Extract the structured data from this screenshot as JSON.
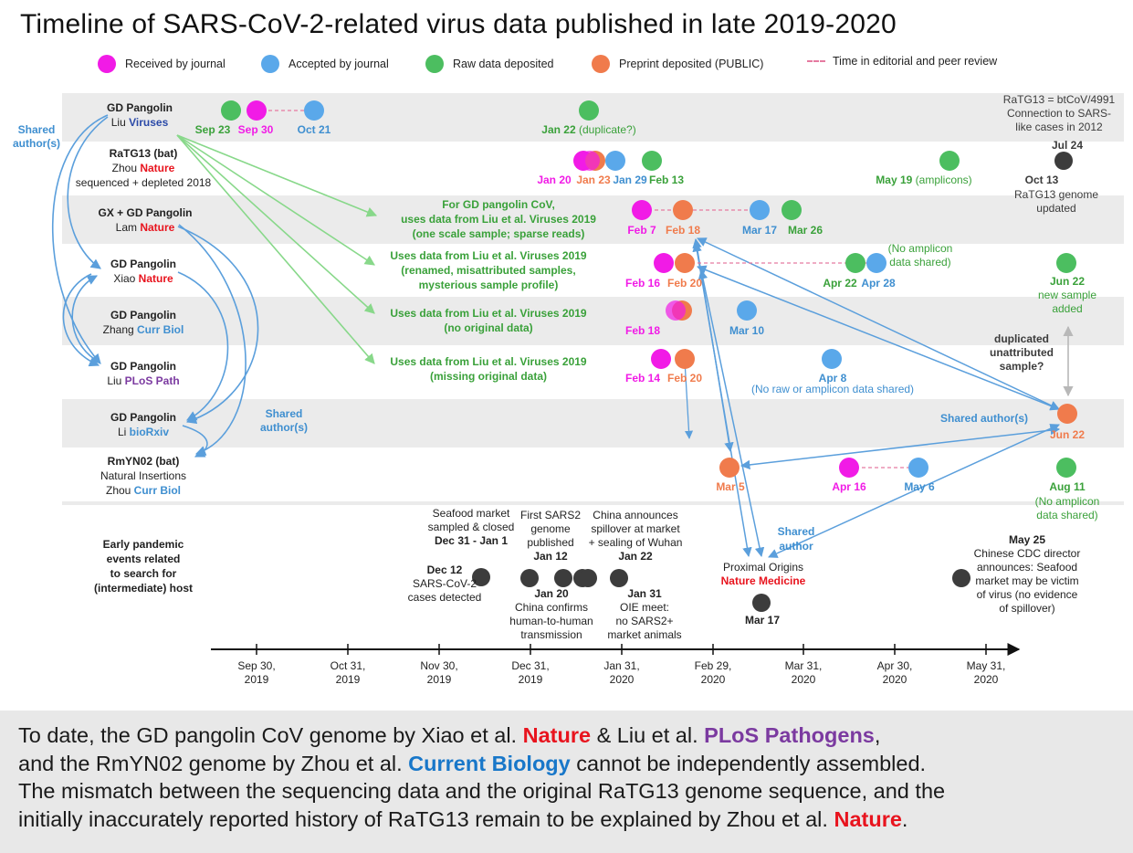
{
  "title": "Timeline of SARS-CoV-2-related virus data published in late 2019-2020",
  "colors": {
    "received": "#f11be6",
    "accepted": "#5aa8ea",
    "raw": "#4cbe60",
    "preprint": "#f07b4c",
    "event": "#3c3c3c",
    "green_text": "#3aa13a",
    "blue_text": "#3f8fd0",
    "red_text": "#e8141e",
    "navy_text": "#2b4aa8",
    "purple_text": "#7b3aa0",
    "arrow_blue": "#5b9fdc",
    "arrow_green": "#88d88a",
    "band": "#ebebeb"
  },
  "legend": [
    {
      "key": "received",
      "label": "Received by journal"
    },
    {
      "key": "accepted",
      "label": "Accepted by journal"
    },
    {
      "key": "raw",
      "label": "Raw data deposited"
    },
    {
      "key": "preprint",
      "label": "Preprint deposited (PUBLIC)"
    },
    {
      "key": "review",
      "label": "Time in editorial and peer review"
    }
  ],
  "row_labels": [
    {
      "id": "liu-viruses",
      "lines": [
        [
          {
            "t": "GD Pangolin",
            "b": true
          }
        ],
        [
          {
            "t": "Liu "
          },
          {
            "t": "Viruses",
            "c": "navy_text",
            "b": true
          }
        ]
      ]
    },
    {
      "id": "ratg13",
      "lines": [
        [
          {
            "t": "RaTG13 (bat)",
            "b": true
          }
        ],
        [
          {
            "t": "Zhou "
          },
          {
            "t": "Nature",
            "c": "red_text",
            "b": true
          }
        ],
        [
          {
            "t": "sequenced + depleted 2018"
          }
        ]
      ]
    },
    {
      "id": "lam",
      "lines": [
        [
          {
            "t": "GX + GD Pangolin",
            "b": true
          }
        ],
        [
          {
            "t": "Lam "
          },
          {
            "t": "Nature",
            "c": "red_text",
            "b": true
          }
        ]
      ]
    },
    {
      "id": "xiao",
      "lines": [
        [
          {
            "t": "GD Pangolin",
            "b": true
          }
        ],
        [
          {
            "t": "Xiao "
          },
          {
            "t": "Nature",
            "c": "red_text",
            "b": true
          }
        ]
      ]
    },
    {
      "id": "zhang",
      "lines": [
        [
          {
            "t": "GD Pangolin",
            "b": true
          }
        ],
        [
          {
            "t": "Zhang "
          },
          {
            "t": "Curr Biol",
            "c": "blue_text",
            "b": true
          }
        ]
      ]
    },
    {
      "id": "liu-plos",
      "lines": [
        [
          {
            "t": "GD Pangolin",
            "b": true
          }
        ],
        [
          {
            "t": "Liu "
          },
          {
            "t": "PLoS Path",
            "c": "purple_text",
            "b": true
          }
        ]
      ]
    },
    {
      "id": "li",
      "lines": [
        [
          {
            "t": "GD Pangolin",
            "b": true
          }
        ],
        [
          {
            "t": "Li "
          },
          {
            "t": "bioRxiv",
            "c": "blue_text",
            "b": true
          }
        ]
      ]
    },
    {
      "id": "rmyn02",
      "lines": [
        [
          {
            "t": "RmYN02 (bat)",
            "b": true
          }
        ],
        [
          {
            "t": "Natural Insertions"
          }
        ],
        [
          {
            "t": "Zhou "
          },
          {
            "t": "Curr Biol",
            "c": "blue_text",
            "b": true
          }
        ]
      ]
    },
    {
      "id": "early",
      "lines": [
        [
          {
            "t": "Early pandemic",
            "b": true
          }
        ],
        [
          {
            "t": "events related",
            "b": true
          }
        ],
        [
          {
            "t": "to search for",
            "b": true
          }
        ],
        [
          {
            "t": "(intermediate) host",
            "b": true
          }
        ]
      ]
    }
  ],
  "shared_authors": [
    {
      "id": "left",
      "lines": [
        "Shared",
        "author(s)"
      ]
    },
    {
      "id": "middle",
      "lines": [
        "Shared",
        "author(s)"
      ]
    },
    {
      "id": "right",
      "text": "Shared author(s)"
    },
    {
      "id": "nm",
      "lines": [
        "Shared",
        "author"
      ]
    }
  ],
  "dots": [
    {
      "id": "liu-sep23",
      "type": "raw",
      "date": "Sep 23",
      "label_c": "green_text"
    },
    {
      "id": "liu-sep30",
      "type": "received",
      "date": "Sep 30",
      "label_c": "received"
    },
    {
      "id": "liu-oct21",
      "type": "accepted",
      "date": "Oct 21",
      "label_c": "blue_text"
    },
    {
      "id": "liu-jan22",
      "type": "raw",
      "date": "Jan 22",
      "label_c": "green_text",
      "note": "(duplicate?)"
    },
    {
      "id": "rat-jan20",
      "type": "received",
      "date": "Jan 20",
      "label_c": "received"
    },
    {
      "id": "rat-jan23p",
      "type": "preprint"
    },
    {
      "id": "rat-jan23",
      "type": "received",
      "date": "Jan 23",
      "label_c": "preprint",
      "semi": true
    },
    {
      "id": "rat-jan29",
      "type": "accepted",
      "date": "Jan 29",
      "label_c": "blue_text"
    },
    {
      "id": "rat-feb13",
      "type": "raw",
      "date": "Feb 13",
      "label_c": "green_text"
    },
    {
      "id": "rat-may19",
      "type": "raw",
      "date": "May 19",
      "label_c": "green_text",
      "note": "(amplicons)"
    },
    {
      "id": "rat-oct13",
      "type": "event",
      "date": "Oct 13",
      "label_c": "event"
    },
    {
      "id": "lam-feb7",
      "type": "received",
      "date": "Feb 7",
      "label_c": "received"
    },
    {
      "id": "lam-feb18",
      "type": "preprint",
      "date": "Feb 18",
      "label_c": "preprint"
    },
    {
      "id": "lam-mar17",
      "type": "accepted",
      "date": "Mar 17",
      "label_c": "blue_text"
    },
    {
      "id": "lam-mar26",
      "type": "raw",
      "date": "Mar 26",
      "label_c": "green_text"
    },
    {
      "id": "xiao-feb16",
      "type": "received",
      "date": "Feb 16",
      "label_c": "received"
    },
    {
      "id": "xiao-feb20",
      "type": "preprint",
      "date": "Feb 20",
      "label_c": "preprint"
    },
    {
      "id": "xiao-apr22",
      "type": "raw",
      "date": "Apr 22",
      "label_c": "green_text"
    },
    {
      "id": "xiao-apr28",
      "type": "accepted",
      "date": "Apr 28",
      "label_c": "blue_text"
    },
    {
      "id": "xiao-jun22",
      "type": "raw",
      "date": "Jun 22",
      "label_c": "green_text"
    },
    {
      "id": "zhang-feb20p",
      "type": "preprint"
    },
    {
      "id": "zhang-feb18",
      "type": "received",
      "date": "Feb 18",
      "label_c": "received",
      "semi": true
    },
    {
      "id": "zhang-mar10",
      "type": "accepted",
      "date": "Mar 10",
      "label_c": "blue_text"
    },
    {
      "id": "plos-feb14",
      "type": "received",
      "date": "Feb 14",
      "label_c": "received"
    },
    {
      "id": "plos-feb20",
      "type": "preprint",
      "date": "Feb 20",
      "label_c": "preprint"
    },
    {
      "id": "plos-apr8",
      "type": "accepted",
      "date": "Apr 8",
      "label_c": "blue_text"
    },
    {
      "id": "li-jun22",
      "type": "preprint",
      "date": "Jun 22",
      "label_c": "preprint"
    },
    {
      "id": "rm-mar5",
      "type": "preprint",
      "date": "Mar 5",
      "label_c": "preprint"
    },
    {
      "id": "rm-apr16",
      "type": "received",
      "date": "Apr 16",
      "label_c": "received"
    },
    {
      "id": "rm-may6",
      "type": "accepted",
      "date": "May 6",
      "label_c": "blue_text"
    },
    {
      "id": "rm-aug11",
      "type": "raw",
      "date": "Aug 11",
      "label_c": "green_text"
    },
    {
      "id": "ev-dec12",
      "type": "event"
    },
    {
      "id": "ev-dec31",
      "type": "event"
    },
    {
      "id": "ev-jan12",
      "type": "event"
    },
    {
      "id": "ev-jan20",
      "type": "event"
    },
    {
      "id": "ev-jan22",
      "type": "event"
    },
    {
      "id": "ev-jan31",
      "type": "event"
    },
    {
      "id": "ev-mar17",
      "type": "event"
    },
    {
      "id": "ev-may25",
      "type": "event"
    }
  ],
  "review_lines": [
    "liu",
    "lam",
    "xiao",
    "rmyn"
  ],
  "green_arrows": [
    "lam",
    "xiao",
    "zhang",
    "liu-plos"
  ],
  "green_notes": [
    {
      "id": "lam",
      "lines": [
        "For GD pangolin CoV,",
        "uses data from Liu et al.  Viruses 2019",
        "(one scale sample; sparse reads)"
      ]
    },
    {
      "id": "xiao",
      "lines": [
        "Uses data from Liu et al.  Viruses 2019",
        "(renamed, misattributed samples,",
        "mysterious sample profile)"
      ]
    },
    {
      "id": "zhang",
      "lines": [
        "Uses data from Liu et al.  Viruses 2019",
        "(no original data)"
      ]
    },
    {
      "id": "liu-plos",
      "lines": [
        "Uses data from Liu et al.  Viruses 2019",
        "(missing original data)"
      ]
    }
  ],
  "annotations": [
    {
      "id": "ratg13-note",
      "c": "event",
      "lines": [
        "RaTG13 = btCoV/4991",
        "Connection to SARS-",
        "like cases in 2012"
      ]
    },
    {
      "id": "jul24",
      "c": "event",
      "b": true,
      "lines": [
        "Jul 24"
      ]
    },
    {
      "id": "ratg13-updated",
      "c": "event",
      "lines": [
        "RaTG13 genome",
        "updated"
      ]
    },
    {
      "id": "xiao-noamp",
      "c": "green_text",
      "lines": [
        "(No amplicon",
        "data shared)"
      ]
    },
    {
      "id": "xiao-newsample",
      "c": "green_text",
      "lines": [
        "new sample",
        "added"
      ]
    },
    {
      "id": "dup",
      "c": "event",
      "b": true,
      "lines": [
        "duplicated",
        "unattributed",
        "sample?"
      ]
    },
    {
      "id": "plos-noraw",
      "c": "blue_text",
      "lines": [
        "(No raw or amplicon data shared)"
      ]
    },
    {
      "id": "rm-noamp",
      "c": "green_text",
      "lines": [
        "(No amplicon",
        "data shared)"
      ]
    }
  ],
  "events": [
    {
      "id": "dec12",
      "bold": "Dec 12",
      "text": [
        "SARS-CoV-2",
        "cases detected"
      ]
    },
    {
      "id": "dec31",
      "text": [
        "Seafood market",
        "sampled & closed"
      ],
      "bold": "Dec 31 - Jan 1"
    },
    {
      "id": "jan12",
      "text": [
        "First SARS2",
        "genome",
        "published"
      ],
      "bold": "Jan 12"
    },
    {
      "id": "jan22",
      "text": [
        "China announces",
        "spillover at market",
        "+ sealing of Wuhan"
      ],
      "bold": "Jan 22"
    },
    {
      "id": "jan20",
      "bold": "Jan 20",
      "text": [
        "China confirms",
        "human-to-human",
        "transmission"
      ]
    },
    {
      "id": "jan31",
      "bold": "Jan 31",
      "text": [
        "OIE meet:",
        "no SARS2+",
        "market animals"
      ]
    },
    {
      "id": "mar17",
      "text": [
        "Proximal Origins"
      ],
      "red": "Nature Medicine",
      "bold": "Mar 17"
    },
    {
      "id": "may25",
      "bold": "May 25",
      "text": [
        "Chinese CDC director",
        "announces: Seafood",
        "market may be victim",
        "of virus (no evidence",
        "of spillover)"
      ]
    }
  ],
  "chart_data": {
    "type": "timeline",
    "title": "Timeline of SARS-CoV-2-related virus data published in late 2019-2020",
    "x_ticks": [
      [
        "Sep 30,",
        "2019"
      ],
      [
        "Oct 31,",
        "2019"
      ],
      [
        "Nov 30,",
        "2019"
      ],
      [
        "Dec 31,",
        "2019"
      ],
      [
        "Jan 31,",
        "2020"
      ],
      [
        "Feb 29,",
        "2020"
      ],
      [
        "Mar 31,",
        "2020"
      ],
      [
        "Apr 30,",
        "2020"
      ],
      [
        "May 31,",
        "2020"
      ]
    ],
    "series": [
      {
        "name": "GD Pangolin Liu Viruses",
        "events": [
          [
            "Sep 23",
            "Raw data deposited"
          ],
          [
            "Sep 30",
            "Received by journal"
          ],
          [
            "Oct 21",
            "Accepted by journal"
          ],
          [
            "Jan 22",
            "Raw data deposited (duplicate?)"
          ]
        ]
      },
      {
        "name": "RaTG13 (bat) Zhou Nature",
        "events": [
          [
            "Jan 20",
            "Received by journal"
          ],
          [
            "Jan 23",
            "Preprint deposited"
          ],
          [
            "Jan 29",
            "Accepted by journal"
          ],
          [
            "Feb 13",
            "Raw data deposited"
          ],
          [
            "May 19",
            "Raw data deposited (amplicons)"
          ],
          [
            "Oct 13",
            "RaTG13 genome updated"
          ]
        ]
      },
      {
        "name": "GX + GD Pangolin Lam Nature",
        "events": [
          [
            "Feb 7",
            "Received by journal"
          ],
          [
            "Feb 18",
            "Preprint deposited"
          ],
          [
            "Mar 17",
            "Accepted by journal"
          ],
          [
            "Mar 26",
            "Raw data deposited"
          ]
        ]
      },
      {
        "name": "GD Pangolin Xiao Nature",
        "events": [
          [
            "Feb 16",
            "Received by journal"
          ],
          [
            "Feb 20",
            "Preprint deposited"
          ],
          [
            "Apr 22",
            "Raw data deposited"
          ],
          [
            "Apr 28",
            "Accepted by journal"
          ],
          [
            "Jun 22",
            "Raw data deposited (new sample added)"
          ]
        ]
      },
      {
        "name": "GD Pangolin Zhang Curr Biol",
        "events": [
          [
            "Feb 18",
            "Received by journal"
          ],
          [
            "Feb 20",
            "Preprint deposited"
          ],
          [
            "Mar 10",
            "Accepted by journal"
          ]
        ]
      },
      {
        "name": "GD Pangolin Liu PLoS Path",
        "events": [
          [
            "Feb 14",
            "Received by journal"
          ],
          [
            "Feb 20",
            "Preprint deposited"
          ],
          [
            "Apr 8",
            "Accepted by journal"
          ]
        ]
      },
      {
        "name": "GD Pangolin Li bioRxiv",
        "events": [
          [
            "Jun 22",
            "Preprint deposited"
          ]
        ]
      },
      {
        "name": "RmYN02 (bat) Zhou Curr Biol",
        "events": [
          [
            "Mar 5",
            "Preprint deposited"
          ],
          [
            "Apr 16",
            "Received by journal"
          ],
          [
            "May 6",
            "Accepted by journal"
          ],
          [
            "Aug 11",
            "Raw data deposited"
          ]
        ]
      }
    ]
  },
  "footer": {
    "lines": [
      [
        {
          "t": "To date, the GD pangolin CoV genome by Xiao et al. "
        },
        {
          "t": "Nature",
          "c": "fn"
        },
        {
          "t": " & Liu et al. "
        },
        {
          "t": "PLoS Pathogens",
          "c": "fp"
        },
        {
          "t": ","
        }
      ],
      [
        {
          "t": "and the RmYN02 genome by Zhou et al. "
        },
        {
          "t": "Current Biology",
          "c": "fc"
        },
        {
          "t": " cannot be independently assembled."
        }
      ],
      [
        {
          "t": "The mismatch between the sequencing data and the original RaTG13 genome sequence, and the"
        }
      ],
      [
        {
          "t": "initially inaccurately reported history of RaTG13 remain to be explained by Zhou et al. "
        },
        {
          "t": "Nature",
          "c": "fn"
        },
        {
          "t": "."
        }
      ]
    ]
  }
}
